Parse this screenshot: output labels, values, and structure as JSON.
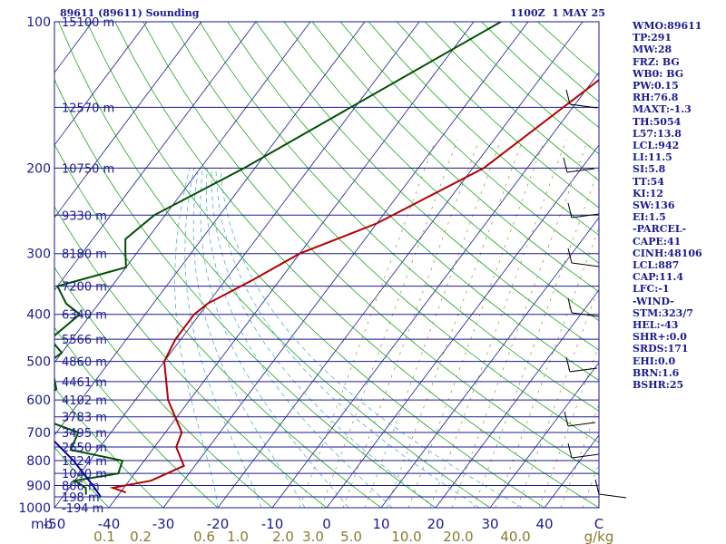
{
  "header": {
    "station": "89611 (89611) Sounding",
    "time": "1100Z  1 MAY 25"
  },
  "indices": [
    "WMO:89611",
    "TP:291",
    "MW:28",
    "FRZ: BG",
    "WB0: BG",
    "PW:0.15",
    "RH:76.8",
    "MAXT:-1.3",
    "TH:5054",
    "L57:13.8",
    "LCL:942",
    "LI:11.5",
    "SI:5.8",
    "TT:54",
    "KI:12",
    "SW:136",
    "EI:1.5",
    "-PARCEL-",
    "CAPE:41",
    "CINH:48106",
    "LCL:887",
    "CAP:11.4",
    "LFC:-1",
    "-WIND-",
    "STM:323/7",
    "HEL:-43",
    "SHR+:0.0",
    "SRDS:171",
    "EHI:0.0",
    "BRN:1.6",
    "BSHR:25"
  ],
  "colors": {
    "isobar": "#1a1a90",
    "isotherm": "#1a1a90",
    "dry_adiabat": "#009a00",
    "moist_adiabat": "#3aa8c8",
    "mixing_ratio": "#8a7a2a",
    "temperature": "#b40000",
    "dewpoint": "#005000",
    "parcel": "#0000a0",
    "label_text": "#1a1a90",
    "mixing_label": "#8a7a2a"
  },
  "chart_data": {
    "type": "line",
    "title": "89611 (89611) Sounding",
    "xlabel": "°C",
    "ylabel": "mb",
    "x_axis_label_left": "mb",
    "x_axis_unit_right": "C",
    "xlim": [
      -50,
      50
    ],
    "pressure_levels": [
      100,
      200,
      300,
      400,
      500,
      600,
      700,
      800,
      900,
      1000
    ],
    "temperature_ticks": [
      -50,
      -40,
      -30,
      -20,
      -10,
      0,
      10,
      20,
      30,
      40,
      50
    ],
    "temperature_tick_labels": [
      "-50",
      "-40",
      "-30",
      "-20",
      "-10",
      "0",
      "10",
      "20",
      "30",
      "40",
      "C"
    ],
    "mixing_ratio_labels": [
      "0.1",
      "0.2",
      "0.6",
      "1.0",
      "2.0",
      "3.0",
      "5.0",
      "10.0",
      "20.0",
      "40.0",
      "g/kg"
    ],
    "height_labels": [
      {
        "p": 100,
        "label": "15100 m"
      },
      {
        "p": 150,
        "label": "12570 m"
      },
      {
        "p": 200,
        "label": "10750 m"
      },
      {
        "p": 250,
        "label": "9330 m"
      },
      {
        "p": 300,
        "label": "8180 m"
      },
      {
        "p": 350,
        "label": "7200 m"
      },
      {
        "p": 400,
        "label": "6340 m"
      },
      {
        "p": 450,
        "label": "5566 m"
      },
      {
        "p": 500,
        "label": "4860 m"
      },
      {
        "p": 550,
        "label": "4461 m"
      },
      {
        "p": 600,
        "label": "4102 m"
      },
      {
        "p": 650,
        "label": "3783 m"
      },
      {
        "p": 700,
        "label": "3495 m"
      },
      {
        "p": 750,
        "label": "2650 m"
      },
      {
        "p": 800,
        "label": "1824 m"
      },
      {
        "p": 850,
        "label": "1040 m"
      },
      {
        "p": 900,
        "label": "806 m"
      },
      {
        "p": 950,
        "label": "198 m"
      },
      {
        "p": 1000,
        "label": "-194 m"
      }
    ],
    "series": [
      {
        "key": "temperature",
        "points": [
          [
            -3,
            100
          ],
          [
            -18,
            200
          ],
          [
            -30,
            260
          ],
          [
            -40,
            300
          ],
          [
            -45,
            340
          ],
          [
            -50,
            380
          ],
          [
            -51,
            400
          ],
          [
            -51,
            450
          ],
          [
            -50,
            500
          ],
          [
            -44,
            600
          ],
          [
            -37,
            700
          ],
          [
            -36,
            750
          ],
          [
            -32,
            820
          ],
          [
            -36,
            880
          ],
          [
            -42,
            910
          ],
          [
            -39,
            930
          ]
        ]
      },
      {
        "key": "dewpoint",
        "points": [
          [
            -35,
            100
          ],
          [
            -62,
            200
          ],
          [
            -72,
            250
          ],
          [
            -74,
            280
          ],
          [
            -72,
            300
          ],
          [
            -70,
            320
          ],
          [
            -80,
            350
          ],
          [
            -76,
            380
          ],
          [
            -72,
            400
          ],
          [
            -74,
            450
          ],
          [
            -70,
            480
          ],
          [
            -71,
            500
          ],
          [
            -68,
            540
          ],
          [
            -66,
            570
          ],
          [
            -67,
            600
          ],
          [
            -66,
            650
          ],
          [
            -56,
            700
          ],
          [
            -55,
            760
          ],
          [
            -44,
            800
          ],
          [
            -43,
            850
          ],
          [
            -50,
            880
          ],
          [
            -47,
            910
          ],
          [
            -46,
            940
          ]
        ]
      },
      {
        "key": "parcel",
        "points": [
          [
            -123,
            130
          ],
          [
            -120,
            200
          ],
          [
            -112,
            300
          ],
          [
            -100,
            400
          ],
          [
            -86,
            500
          ],
          [
            -73,
            600
          ],
          [
            -62,
            700
          ],
          [
            -53,
            800
          ],
          [
            -46,
            900
          ],
          [
            -43,
            950
          ]
        ]
      }
    ]
  }
}
